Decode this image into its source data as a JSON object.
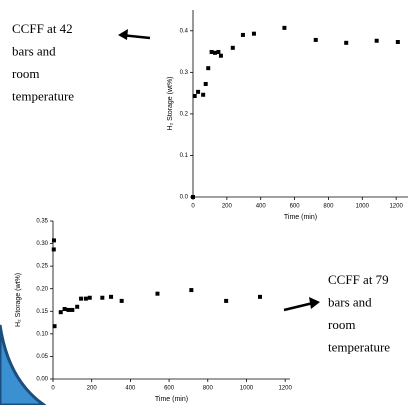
{
  "chart_data": [
    {
      "type": "scatter",
      "x_label": "Time (min)",
      "y_label": "H₂ Storage (wt%)",
      "color": "#000000",
      "x": [
        0,
        10,
        30,
        60,
        75,
        90,
        110,
        130,
        150,
        165,
        235,
        295,
        360,
        540,
        725,
        905,
        1085,
        1210
      ],
      "values": [
        0,
        0.243,
        0.253,
        0.246,
        0.272,
        0.31,
        0.349,
        0.347,
        0.349,
        0.34,
        0.359,
        0.39,
        0.393,
        0.407,
        0.378,
        0.371,
        0.376,
        0.373
      ],
      "xlim": [
        0,
        1270
      ],
      "ylim": [
        0,
        0.45
      ],
      "xticks": [
        0,
        200,
        400,
        600,
        800,
        1000,
        1200
      ],
      "yticks": [
        {
          "value": 0,
          "label": "0.0"
        },
        0.1,
        0.2,
        0.3,
        0.4
      ],
      "annotation": [
        "CCFF at 42",
        "bars and",
        "room",
        "temperature"
      ]
    },
    {
      "type": "scatter",
      "x_label": "Time (min)",
      "y_label": "H₂ Storage (wt%)",
      "color": "#000000",
      "x": [
        5,
        4,
        8,
        40,
        60,
        80,
        100,
        125,
        145,
        170,
        190,
        255,
        300,
        355,
        540,
        715,
        895,
        1070
      ],
      "values": [
        0.307,
        0.287,
        0.117,
        0.148,
        0.155,
        0.153,
        0.153,
        0.16,
        0.178,
        0.178,
        0.18,
        0.18,
        0.182,
        0.173,
        0.189,
        0.197,
        0.173,
        0.182
      ],
      "xlim": [
        0,
        1225
      ],
      "ylim": [
        0,
        0.35
      ],
      "xticks": [
        0,
        200,
        400,
        600,
        800,
        1000,
        1200
      ],
      "yticks": [
        {
          "value": 0,
          "label": "0.00"
        },
        0.05,
        {
          "value": 0.1,
          "label": "0.10"
        },
        0.15,
        {
          "value": 0.2,
          "label": "0.20"
        },
        0.25,
        {
          "value": 0.3,
          "label": "0.30"
        },
        0.35
      ],
      "annotation": [
        "CCFF at 79",
        "bars and",
        "room",
        "temperature"
      ]
    }
  ]
}
